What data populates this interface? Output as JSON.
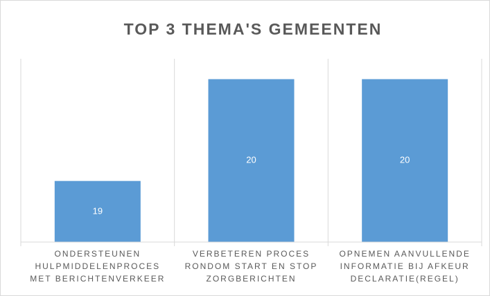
{
  "chart_data": {
    "type": "bar",
    "title": "TOP 3 THEMA'S GEMEENTEN",
    "categories": [
      "ONDERSTEUNEN\nHULPMIDDELENPROCES\nMET BERICHTENVERKEER",
      "VERBETEREN PROCES\nRONDOM START EN STOP\nZORGBERICHTEN",
      "OPNEMEN AANVULLENDE\nINFORMATIE BIJ AFKEUR\nDECLARATIE(REGEL)"
    ],
    "values": [
      19,
      20,
      20
    ],
    "color": "#5b9bd5",
    "ylim": [
      18.4,
      20.2
    ],
    "data_labels": true
  }
}
